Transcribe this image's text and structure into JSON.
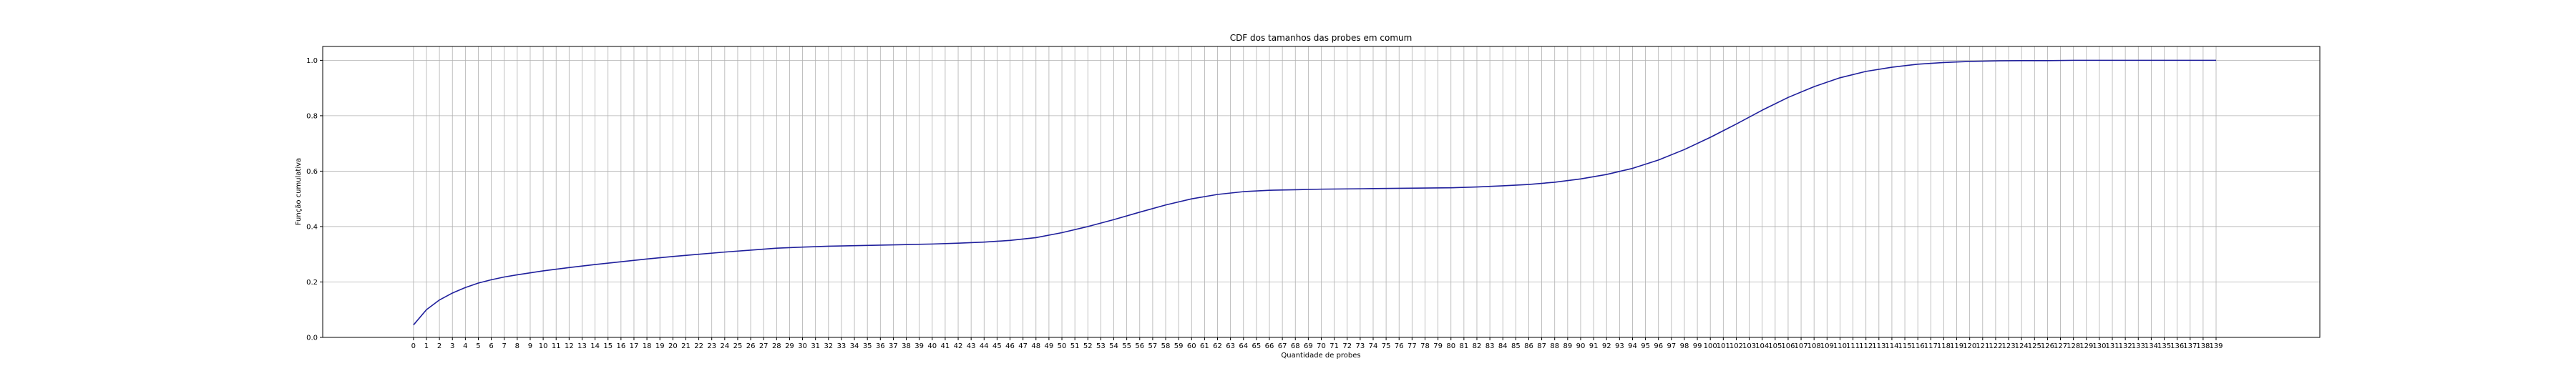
{
  "chart_data": {
    "type": "line",
    "title": "CDF dos tamanhos das probes em comum",
    "xlabel": "Quantidade de probes",
    "ylabel": "Função cumulativa",
    "xlim": [
      -7,
      147
    ],
    "ylim": [
      0.0,
      1.05
    ],
    "xticks_start": 0,
    "xticks_end": 139,
    "yticks": [
      "0.0",
      "0.2",
      "0.4",
      "0.6",
      "0.8",
      "1.0"
    ],
    "grid": true,
    "series": [
      {
        "color": "#1f1f9c",
        "x": [
          0,
          1,
          2,
          3,
          4,
          5,
          6,
          7,
          8,
          9,
          10,
          12,
          14,
          16,
          18,
          20,
          22,
          24,
          26,
          28,
          30,
          32,
          34,
          36,
          38,
          40,
          42,
          44,
          46,
          48,
          50,
          52,
          54,
          56,
          58,
          60,
          62,
          64,
          66,
          68,
          70,
          72,
          74,
          76,
          78,
          80,
          82,
          84,
          86,
          88,
          90,
          92,
          94,
          96,
          98,
          100,
          102,
          104,
          106,
          108,
          110,
          112,
          114,
          116,
          118,
          120,
          122,
          124,
          126,
          128,
          130,
          132,
          134,
          136,
          138,
          139
        ],
        "y": [
          0.045,
          0.1,
          0.135,
          0.16,
          0.18,
          0.196,
          0.208,
          0.218,
          0.226,
          0.233,
          0.24,
          0.252,
          0.263,
          0.273,
          0.283,
          0.292,
          0.3,
          0.308,
          0.315,
          0.322,
          0.326,
          0.329,
          0.331,
          0.333,
          0.335,
          0.337,
          0.34,
          0.344,
          0.35,
          0.36,
          0.378,
          0.4,
          0.425,
          0.452,
          0.478,
          0.5,
          0.516,
          0.526,
          0.531,
          0.533,
          0.535,
          0.536,
          0.537,
          0.538,
          0.539,
          0.54,
          0.543,
          0.547,
          0.552,
          0.56,
          0.572,
          0.588,
          0.61,
          0.64,
          0.678,
          0.722,
          0.77,
          0.82,
          0.866,
          0.905,
          0.937,
          0.96,
          0.975,
          0.986,
          0.992,
          0.996,
          0.998,
          0.999,
          0.999,
          1.0,
          1.0,
          1.0,
          1.0,
          1.0,
          1.0,
          1.0
        ]
      }
    ]
  }
}
